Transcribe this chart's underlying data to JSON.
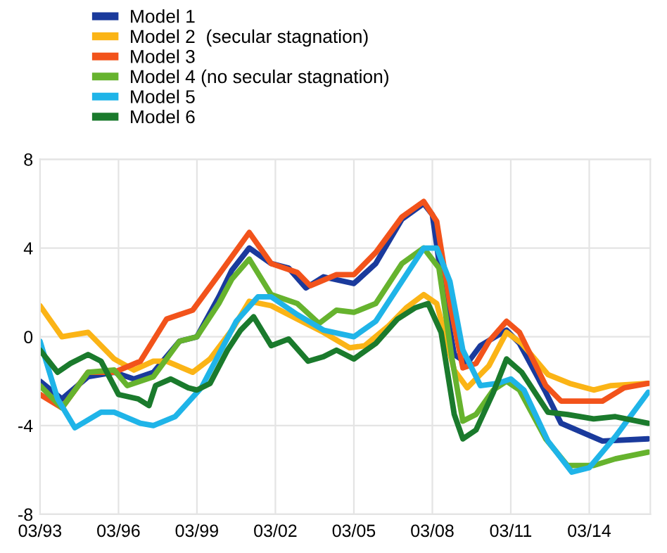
{
  "chart_data": {
    "type": "line",
    "legend": "top left",
    "grid": true,
    "marker": "none",
    "line_style": "solid",
    "xlim": [
      "1993-03",
      "2016-07"
    ],
    "ylim": [
      -8,
      8
    ],
    "yticks": [
      -8,
      -4,
      0,
      4,
      8
    ],
    "xticks": [
      {
        "value": "1993-03",
        "label": "03/93"
      },
      {
        "value": "1996-03",
        "label": "03/96"
      },
      {
        "value": "1999-03",
        "label": "03/99"
      },
      {
        "value": "2002-03",
        "label": "03/02"
      },
      {
        "value": "2005-03",
        "label": "03/05"
      },
      {
        "value": "2008-03",
        "label": "03/08"
      },
      {
        "value": "2011-03",
        "label": "03/11"
      },
      {
        "value": "2014-03",
        "label": "03/14"
      }
    ],
    "series": [
      {
        "name": "Model 1",
        "color": "#1a3a9c",
        "x": [
          "1993-03",
          "1994-01",
          "1995-01",
          "1996-01",
          "1996-10",
          "1997-07",
          "1998-07",
          "1999-03",
          "2000-01",
          "2000-07",
          "2001-03",
          "2002-01",
          "2002-09",
          "2003-05",
          "2004-01",
          "2005-03",
          "2006-01",
          "2007-01",
          "2007-11",
          "2008-03",
          "2008-08",
          "2009-01",
          "2009-07",
          "2010-01",
          "2011-01",
          "2011-07",
          "2012-07",
          "2013-02",
          "2014-09",
          "2016-06"
        ],
        "values": [
          -2,
          -2.8,
          -1.8,
          -1.6,
          -1.9,
          -1.6,
          -0.2,
          0,
          1.8,
          3,
          4,
          3.3,
          3.1,
          2.2,
          2.7,
          2.4,
          3.3,
          5.3,
          6,
          5.5,
          2,
          -0.8,
          -1.2,
          -0.4,
          0.3,
          -0.3,
          -2.5,
          -3.9,
          -4.7,
          -4.6
        ]
      },
      {
        "name": "Model 2  (secular stagnation)",
        "color": "#fbb416",
        "x": [
          "1993-03",
          "1994-01",
          "1995-01",
          "1996-01",
          "1996-10",
          "1997-07",
          "1998-01",
          "1999-01",
          "1999-09",
          "2000-07",
          "2001-03",
          "2002-01",
          "2003-01",
          "2004-01",
          "2005-01",
          "2005-08",
          "2006-07",
          "2007-03",
          "2007-11",
          "2008-05",
          "2009-01",
          "2009-07",
          "2010-05",
          "2011-01",
          "2011-08",
          "2012-08",
          "2013-06",
          "2014-05",
          "2015-01",
          "2016-06"
        ],
        "values": [
          1.4,
          0,
          0.2,
          -1,
          -1.5,
          -1.1,
          -1.1,
          -1.6,
          -1,
          0.3,
          1.6,
          1.4,
          0.8,
          0.2,
          -0.5,
          -0.4,
          0.5,
          1.3,
          1.9,
          1.5,
          -1.5,
          -2.3,
          -1.3,
          0.2,
          -0.3,
          -1.7,
          -2.1,
          -2.4,
          -2.2,
          -2.1
        ]
      },
      {
        "name": "Model 3",
        "color": "#f2531b",
        "x": [
          "1993-03",
          "1994-01",
          "1995-01",
          "1996-01",
          "1997-01",
          "1998-01",
          "1999-01",
          "2000-01",
          "2001-03",
          "2002-01",
          "2003-01",
          "2003-07",
          "2004-07",
          "2005-03",
          "2006-01",
          "2007-01",
          "2007-11",
          "2008-05",
          "2008-11",
          "2009-05",
          "2009-11",
          "2010-05",
          "2011-01",
          "2011-07",
          "2012-07",
          "2013-02",
          "2014-01",
          "2014-09",
          "2015-07",
          "2016-06"
        ],
        "values": [
          -2.6,
          -3.2,
          -1.6,
          -1.6,
          -1.1,
          0.8,
          1.2,
          2.8,
          4.7,
          3.3,
          2.9,
          2.3,
          2.8,
          2.8,
          3.8,
          5.4,
          6.1,
          5.2,
          1.5,
          -1.4,
          -1.2,
          -0.2,
          0.7,
          0.2,
          -2.2,
          -2.9,
          -2.9,
          -2.9,
          -2.3,
          -2.1
        ]
      },
      {
        "name": "Model 4 (no secular stagnation)",
        "color": "#66b32e",
        "x": [
          "1993-03",
          "1994-01",
          "1995-01",
          "1996-01",
          "1996-07",
          "1997-07",
          "1998-07",
          "1999-03",
          "2000-01",
          "2000-07",
          "2001-03",
          "2002-01",
          "2003-01",
          "2003-11",
          "2004-07",
          "2005-03",
          "2006-01",
          "2007-01",
          "2007-11",
          "2008-06",
          "2008-12",
          "2009-05",
          "2009-11",
          "2010-07",
          "2011-01",
          "2011-07",
          "2012-07",
          "2013-05",
          "2014-05",
          "2015-03",
          "2016-06"
        ],
        "values": [
          -2.2,
          -3.2,
          -1.6,
          -1.5,
          -2.2,
          -1.8,
          -0.2,
          0,
          1.5,
          2.6,
          3.5,
          1.9,
          1.5,
          0.6,
          1.2,
          1.1,
          1.5,
          3.3,
          4,
          3.1,
          -1,
          -3.8,
          -3.5,
          -2.4,
          -2,
          -2.4,
          -4.6,
          -5.8,
          -5.8,
          -5.5,
          -5.2
        ]
      },
      {
        "name": "Model 5",
        "color": "#1fb4e8",
        "x": [
          "1993-03",
          "1993-11",
          "1994-07",
          "1995-07",
          "1996-01",
          "1997-01",
          "1997-07",
          "1998-05",
          "1999-05",
          "2000-01",
          "2000-09",
          "2001-07",
          "2002-01",
          "2003-01",
          "2004-01",
          "2005-03",
          "2006-01",
          "2006-11",
          "2007-11",
          "2008-05",
          "2008-11",
          "2009-05",
          "2010-01",
          "2010-09",
          "2011-03",
          "2011-09",
          "2012-08",
          "2013-07",
          "2014-03",
          "2015-03",
          "2016-06"
        ],
        "values": [
          -0.2,
          -2.8,
          -4.1,
          -3.4,
          -3.4,
          -3.9,
          -4,
          -3.6,
          -2.3,
          -0.8,
          0.7,
          1.8,
          1.8,
          1,
          0.3,
          0,
          0.7,
          2.2,
          4,
          4,
          2.5,
          -0.6,
          -2.2,
          -2.1,
          -1.9,
          -2.4,
          -4.7,
          -6.1,
          -5.9,
          -4.5,
          -2.5
        ]
      },
      {
        "name": "Model 6",
        "color": "#1a7a2c",
        "x": [
          "1993-03",
          "1993-11",
          "1994-05",
          "1995-01",
          "1995-07",
          "1996-03",
          "1996-12",
          "1997-05",
          "1997-08",
          "1998-03",
          "1998-11",
          "1999-03",
          "1999-09",
          "2000-05",
          "2000-11",
          "2001-05",
          "2002-01",
          "2002-09",
          "2003-06",
          "2004-01",
          "2004-07",
          "2005-03",
          "2006-01",
          "2006-11",
          "2007-07",
          "2008-01",
          "2008-07",
          "2009-01",
          "2009-05",
          "2009-11",
          "2010-07",
          "2011-01",
          "2011-08",
          "2012-08",
          "2013-05",
          "2014-05",
          "2015-03",
          "2016-06"
        ],
        "values": [
          -0.6,
          -1.6,
          -1.2,
          -0.8,
          -1.1,
          -2.6,
          -2.8,
          -3.1,
          -2.2,
          -1.9,
          -2.3,
          -2.4,
          -2.1,
          -0.6,
          0.3,
          0.9,
          -0.4,
          -0.1,
          -1.1,
          -0.9,
          -0.6,
          -1,
          -0.3,
          0.8,
          1.3,
          1.5,
          0.2,
          -3.5,
          -4.6,
          -4.2,
          -2.5,
          -1,
          -1.6,
          -3.4,
          -3.5,
          -3.7,
          -3.6,
          -3.9
        ]
      }
    ]
  }
}
